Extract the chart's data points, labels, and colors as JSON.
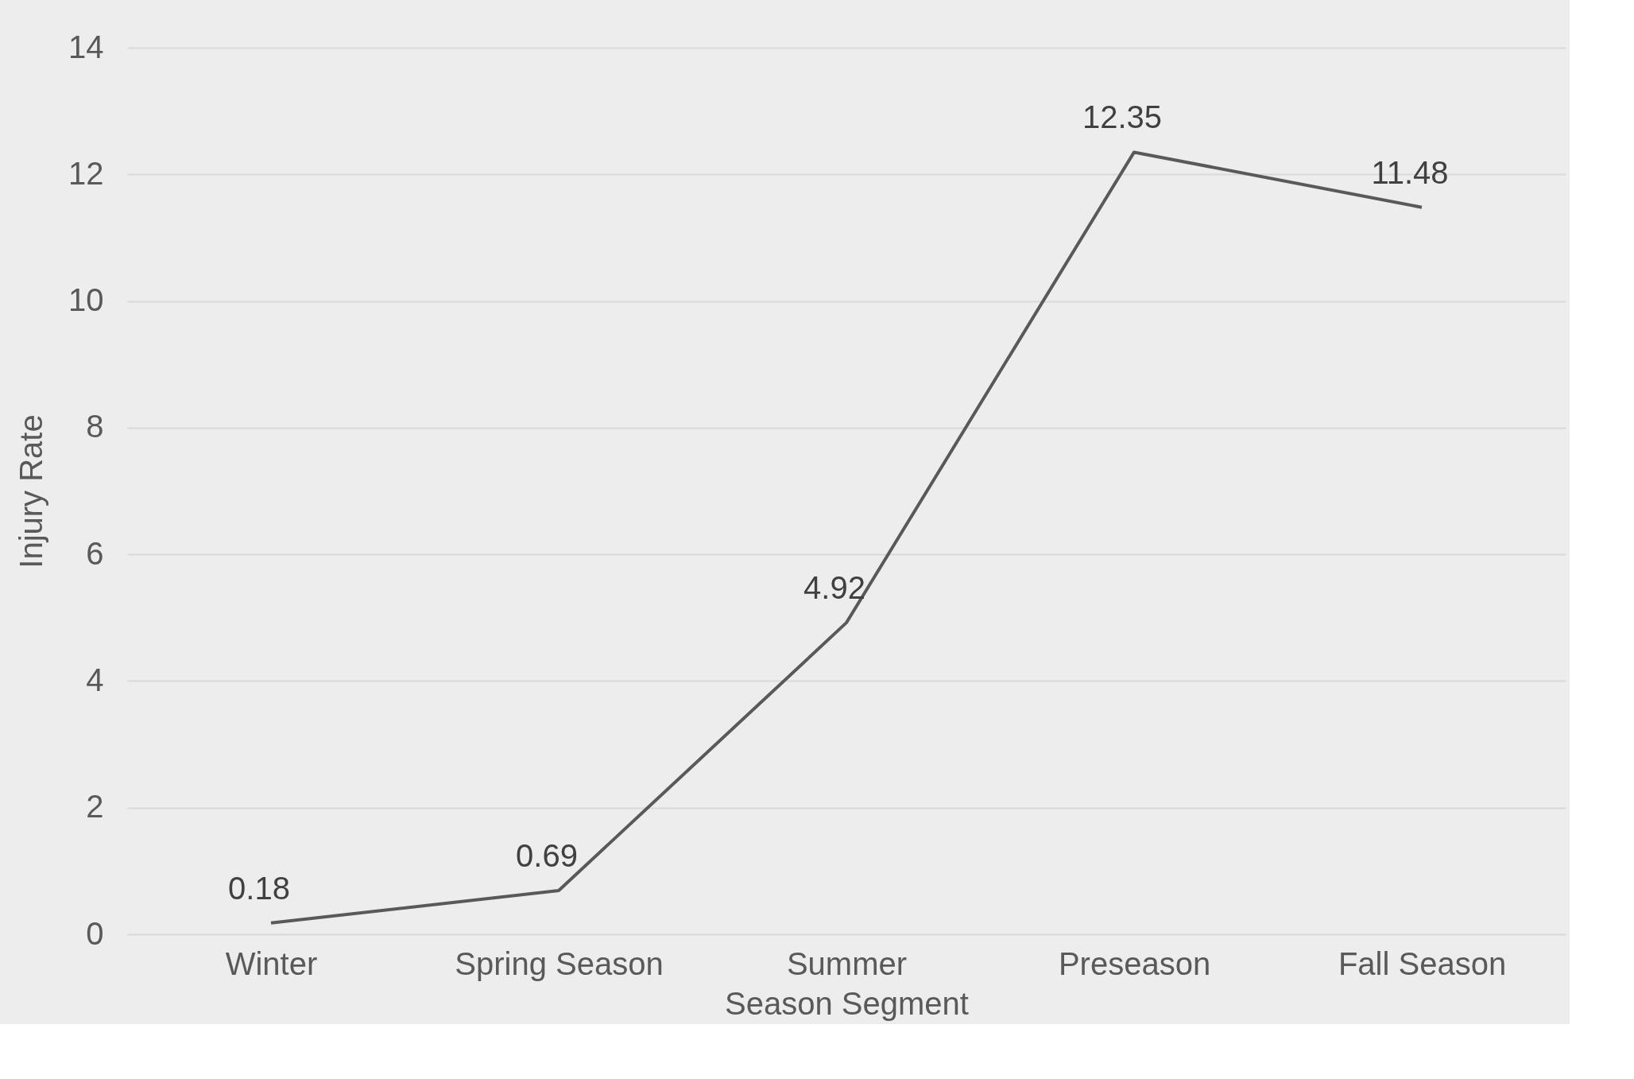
{
  "chart_data": {
    "type": "line",
    "xlabel": "Season Segment",
    "ylabel": "Injury Rate",
    "categories": [
      "Winter",
      "Spring Season",
      "Summer",
      "Preseason",
      "Fall Season"
    ],
    "series": [
      {
        "color": "#595959",
        "values": [
          0.18,
          0.69,
          4.92,
          12.35,
          11.48
        ]
      }
    ],
    "ylim": [
      0,
      14
    ],
    "yticks": [
      0,
      2,
      4,
      6,
      8,
      10,
      12,
      14
    ],
    "grid": "y",
    "data_labels": true,
    "marker": "none",
    "line_style": "solid"
  }
}
